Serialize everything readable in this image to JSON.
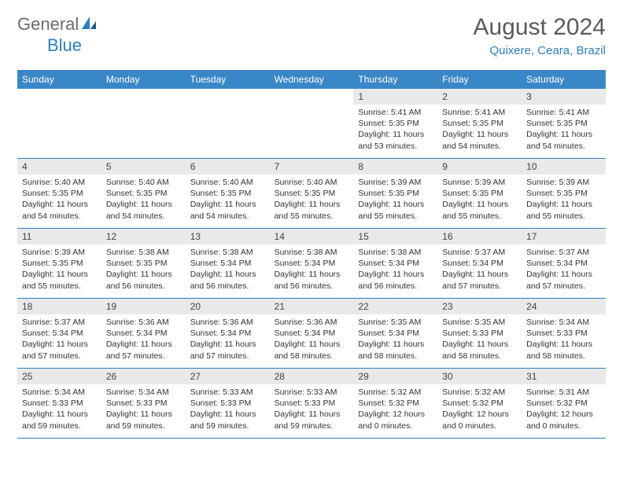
{
  "logo": {
    "text_gray": "General",
    "text_blue": "Blue"
  },
  "title": "August 2024",
  "location": "Quixere, Ceara, Brazil",
  "colors": {
    "header_bg": "#3a87c8",
    "header_text": "#ffffff",
    "daynum_bg": "#e9e9e9",
    "rule": "#2d7fc1",
    "logo_gray": "#6b6b6b",
    "logo_blue": "#2d7fc1"
  },
  "day_names": [
    "Sunday",
    "Monday",
    "Tuesday",
    "Wednesday",
    "Thursday",
    "Friday",
    "Saturday"
  ],
  "weeks": [
    [
      {
        "n": "",
        "sr": "",
        "ss": "",
        "dl": ""
      },
      {
        "n": "",
        "sr": "",
        "ss": "",
        "dl": ""
      },
      {
        "n": "",
        "sr": "",
        "ss": "",
        "dl": ""
      },
      {
        "n": "",
        "sr": "",
        "ss": "",
        "dl": ""
      },
      {
        "n": "1",
        "sr": "Sunrise: 5:41 AM",
        "ss": "Sunset: 5:35 PM",
        "dl": "Daylight: 11 hours and 53 minutes."
      },
      {
        "n": "2",
        "sr": "Sunrise: 5:41 AM",
        "ss": "Sunset: 5:35 PM",
        "dl": "Daylight: 11 hours and 54 minutes."
      },
      {
        "n": "3",
        "sr": "Sunrise: 5:41 AM",
        "ss": "Sunset: 5:35 PM",
        "dl": "Daylight: 11 hours and 54 minutes."
      }
    ],
    [
      {
        "n": "4",
        "sr": "Sunrise: 5:40 AM",
        "ss": "Sunset: 5:35 PM",
        "dl": "Daylight: 11 hours and 54 minutes."
      },
      {
        "n": "5",
        "sr": "Sunrise: 5:40 AM",
        "ss": "Sunset: 5:35 PM",
        "dl": "Daylight: 11 hours and 54 minutes."
      },
      {
        "n": "6",
        "sr": "Sunrise: 5:40 AM",
        "ss": "Sunset: 5:35 PM",
        "dl": "Daylight: 11 hours and 54 minutes."
      },
      {
        "n": "7",
        "sr": "Sunrise: 5:40 AM",
        "ss": "Sunset: 5:35 PM",
        "dl": "Daylight: 11 hours and 55 minutes."
      },
      {
        "n": "8",
        "sr": "Sunrise: 5:39 AM",
        "ss": "Sunset: 5:35 PM",
        "dl": "Daylight: 11 hours and 55 minutes."
      },
      {
        "n": "9",
        "sr": "Sunrise: 5:39 AM",
        "ss": "Sunset: 5:35 PM",
        "dl": "Daylight: 11 hours and 55 minutes."
      },
      {
        "n": "10",
        "sr": "Sunrise: 5:39 AM",
        "ss": "Sunset: 5:35 PM",
        "dl": "Daylight: 11 hours and 55 minutes."
      }
    ],
    [
      {
        "n": "11",
        "sr": "Sunrise: 5:39 AM",
        "ss": "Sunset: 5:35 PM",
        "dl": "Daylight: 11 hours and 55 minutes."
      },
      {
        "n": "12",
        "sr": "Sunrise: 5:38 AM",
        "ss": "Sunset: 5:35 PM",
        "dl": "Daylight: 11 hours and 56 minutes."
      },
      {
        "n": "13",
        "sr": "Sunrise: 5:38 AM",
        "ss": "Sunset: 5:34 PM",
        "dl": "Daylight: 11 hours and 56 minutes."
      },
      {
        "n": "14",
        "sr": "Sunrise: 5:38 AM",
        "ss": "Sunset: 5:34 PM",
        "dl": "Daylight: 11 hours and 56 minutes."
      },
      {
        "n": "15",
        "sr": "Sunrise: 5:38 AM",
        "ss": "Sunset: 5:34 PM",
        "dl": "Daylight: 11 hours and 56 minutes."
      },
      {
        "n": "16",
        "sr": "Sunrise: 5:37 AM",
        "ss": "Sunset: 5:34 PM",
        "dl": "Daylight: 11 hours and 57 minutes."
      },
      {
        "n": "17",
        "sr": "Sunrise: 5:37 AM",
        "ss": "Sunset: 5:34 PM",
        "dl": "Daylight: 11 hours and 57 minutes."
      }
    ],
    [
      {
        "n": "18",
        "sr": "Sunrise: 5:37 AM",
        "ss": "Sunset: 5:34 PM",
        "dl": "Daylight: 11 hours and 57 minutes."
      },
      {
        "n": "19",
        "sr": "Sunrise: 5:36 AM",
        "ss": "Sunset: 5:34 PM",
        "dl": "Daylight: 11 hours and 57 minutes."
      },
      {
        "n": "20",
        "sr": "Sunrise: 5:36 AM",
        "ss": "Sunset: 5:34 PM",
        "dl": "Daylight: 11 hours and 57 minutes."
      },
      {
        "n": "21",
        "sr": "Sunrise: 5:36 AM",
        "ss": "Sunset: 5:34 PM",
        "dl": "Daylight: 11 hours and 58 minutes."
      },
      {
        "n": "22",
        "sr": "Sunrise: 5:35 AM",
        "ss": "Sunset: 5:34 PM",
        "dl": "Daylight: 11 hours and 58 minutes."
      },
      {
        "n": "23",
        "sr": "Sunrise: 5:35 AM",
        "ss": "Sunset: 5:33 PM",
        "dl": "Daylight: 11 hours and 58 minutes."
      },
      {
        "n": "24",
        "sr": "Sunrise: 5:34 AM",
        "ss": "Sunset: 5:33 PM",
        "dl": "Daylight: 11 hours and 58 minutes."
      }
    ],
    [
      {
        "n": "25",
        "sr": "Sunrise: 5:34 AM",
        "ss": "Sunset: 5:33 PM",
        "dl": "Daylight: 11 hours and 59 minutes."
      },
      {
        "n": "26",
        "sr": "Sunrise: 5:34 AM",
        "ss": "Sunset: 5:33 PM",
        "dl": "Daylight: 11 hours and 59 minutes."
      },
      {
        "n": "27",
        "sr": "Sunrise: 5:33 AM",
        "ss": "Sunset: 5:33 PM",
        "dl": "Daylight: 11 hours and 59 minutes."
      },
      {
        "n": "28",
        "sr": "Sunrise: 5:33 AM",
        "ss": "Sunset: 5:33 PM",
        "dl": "Daylight: 11 hours and 59 minutes."
      },
      {
        "n": "29",
        "sr": "Sunrise: 5:32 AM",
        "ss": "Sunset: 5:32 PM",
        "dl": "Daylight: 12 hours and 0 minutes."
      },
      {
        "n": "30",
        "sr": "Sunrise: 5:32 AM",
        "ss": "Sunset: 5:32 PM",
        "dl": "Daylight: 12 hours and 0 minutes."
      },
      {
        "n": "31",
        "sr": "Sunrise: 5:31 AM",
        "ss": "Sunset: 5:32 PM",
        "dl": "Daylight: 12 hours and 0 minutes."
      }
    ]
  ]
}
